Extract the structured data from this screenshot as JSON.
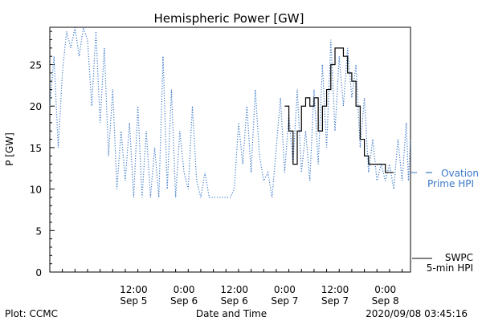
{
  "chart_data": {
    "type": "line",
    "title": "Hemispheric Power [GW]",
    "xlabel": "Date and Time",
    "ylabel": "P [GW]",
    "ylim": [
      0,
      29.5
    ],
    "xlim": [
      "2020-09-04 16:00",
      "2020-09-08 06:00"
    ],
    "y_ticks": [
      0,
      5,
      10,
      15,
      20,
      25
    ],
    "x_ticks": [
      {
        "x": "2020-09-05 12:00",
        "time": "12:00",
        "date": "Sep 5"
      },
      {
        "x": "2020-09-06 00:00",
        "time": "0:00",
        "date": "Sep 6"
      },
      {
        "x": "2020-09-06 12:00",
        "time": "12:00",
        "date": "Sep 6"
      },
      {
        "x": "2020-09-07 00:00",
        "time": "0:00",
        "date": "Sep 7"
      },
      {
        "x": "2020-09-07 12:00",
        "time": "12:00",
        "date": "Sep 7"
      },
      {
        "x": "2020-09-08 00:00",
        "time": "0:00",
        "date": "Sep 8"
      }
    ],
    "legend_placement": "right",
    "grid": false,
    "series": [
      {
        "name": "Ovation Prime HPI",
        "label_line1": "Ovation",
        "label_line2": "Prime HPI",
        "color": "#3a78c8",
        "style": "dotted",
        "points": [
          [
            "2020-09-04 16:00",
            20
          ],
          [
            "2020-09-04 17:00",
            26
          ],
          [
            "2020-09-04 18:00",
            15
          ],
          [
            "2020-09-04 19:00",
            24
          ],
          [
            "2020-09-04 20:00",
            29
          ],
          [
            "2020-09-04 21:00",
            27
          ],
          [
            "2020-09-04 22:00",
            30
          ],
          [
            "2020-09-04 23:00",
            26
          ],
          [
            "2020-09-05 00:00",
            30
          ],
          [
            "2020-09-05 01:00",
            28
          ],
          [
            "2020-09-05 02:00",
            20
          ],
          [
            "2020-09-05 03:00",
            29
          ],
          [
            "2020-09-05 04:00",
            18
          ],
          [
            "2020-09-05 05:00",
            27
          ],
          [
            "2020-09-05 06:00",
            14
          ],
          [
            "2020-09-05 07:00",
            22
          ],
          [
            "2020-09-05 08:00",
            10
          ],
          [
            "2020-09-05 09:00",
            17
          ],
          [
            "2020-09-05 10:00",
            11
          ],
          [
            "2020-09-05 11:00",
            18
          ],
          [
            "2020-09-05 12:00",
            9
          ],
          [
            "2020-09-05 13:00",
            20
          ],
          [
            "2020-09-05 14:00",
            9
          ],
          [
            "2020-09-05 15:00",
            17
          ],
          [
            "2020-09-05 16:00",
            9
          ],
          [
            "2020-09-05 17:00",
            15
          ],
          [
            "2020-09-05 18:00",
            9
          ],
          [
            "2020-09-05 19:00",
            26
          ],
          [
            "2020-09-05 20:00",
            10
          ],
          [
            "2020-09-05 21:00",
            22
          ],
          [
            "2020-09-05 22:00",
            9
          ],
          [
            "2020-09-05 23:00",
            17
          ],
          [
            "2020-09-06 00:00",
            12
          ],
          [
            "2020-09-06 01:00",
            10
          ],
          [
            "2020-09-06 02:00",
            20
          ],
          [
            "2020-09-06 03:00",
            11
          ],
          [
            "2020-09-06 04:00",
            9
          ],
          [
            "2020-09-06 05:00",
            12
          ],
          [
            "2020-09-06 06:00",
            9
          ],
          [
            "2020-09-06 07:00",
            9
          ],
          [
            "2020-09-06 08:00",
            9
          ],
          [
            "2020-09-06 09:00",
            9
          ],
          [
            "2020-09-06 10:00",
            9
          ],
          [
            "2020-09-06 11:00",
            9
          ],
          [
            "2020-09-06 12:00",
            10
          ],
          [
            "2020-09-06 13:00",
            18
          ],
          [
            "2020-09-06 14:00",
            13
          ],
          [
            "2020-09-06 15:00",
            20
          ],
          [
            "2020-09-06 16:00",
            12
          ],
          [
            "2020-09-06 17:00",
            22
          ],
          [
            "2020-09-06 18:00",
            14
          ],
          [
            "2020-09-06 19:00",
            11
          ],
          [
            "2020-09-06 20:00",
            12
          ],
          [
            "2020-09-06 21:00",
            9
          ],
          [
            "2020-09-06 22:00",
            15
          ],
          [
            "2020-09-06 23:00",
            21
          ],
          [
            "2020-09-07 00:00",
            12
          ],
          [
            "2020-09-07 01:00",
            19
          ],
          [
            "2020-09-07 02:00",
            13
          ],
          [
            "2020-09-07 03:00",
            22
          ],
          [
            "2020-09-07 04:00",
            12
          ],
          [
            "2020-09-07 05:00",
            17
          ],
          [
            "2020-09-07 06:00",
            11
          ],
          [
            "2020-09-07 07:00",
            22
          ],
          [
            "2020-09-07 08:00",
            13
          ],
          [
            "2020-09-07 09:00",
            25
          ],
          [
            "2020-09-07 10:00",
            15
          ],
          [
            "2020-09-07 11:00",
            28
          ],
          [
            "2020-09-07 12:00",
            17
          ],
          [
            "2020-09-07 13:00",
            26
          ],
          [
            "2020-09-07 14:00",
            20
          ],
          [
            "2020-09-07 15:00",
            27
          ],
          [
            "2020-09-07 16:00",
            21
          ],
          [
            "2020-09-07 17:00",
            25
          ],
          [
            "2020-09-07 18:00",
            15
          ],
          [
            "2020-09-07 19:00",
            21
          ],
          [
            "2020-09-07 20:00",
            12
          ],
          [
            "2020-09-07 21:00",
            16
          ],
          [
            "2020-09-07 22:00",
            11
          ],
          [
            "2020-09-07 23:00",
            13
          ],
          [
            "2020-09-08 00:00",
            11
          ],
          [
            "2020-09-08 01:00",
            13
          ],
          [
            "2020-09-08 02:00",
            10
          ],
          [
            "2020-09-08 03:00",
            16
          ],
          [
            "2020-09-08 04:00",
            11
          ],
          [
            "2020-09-08 05:00",
            18
          ],
          [
            "2020-09-08 05:30",
            11
          ],
          [
            "2020-09-08 06:00",
            16
          ]
        ]
      },
      {
        "name": "SWPC 5-min HPI",
        "label_line1": "SWPC",
        "label_line2": "5-min HPI",
        "color": "#000000",
        "style": "solid",
        "points": [
          [
            "2020-09-07 00:00",
            20
          ],
          [
            "2020-09-07 01:00",
            17
          ],
          [
            "2020-09-07 02:00",
            13
          ],
          [
            "2020-09-07 03:00",
            17
          ],
          [
            "2020-09-07 04:00",
            20
          ],
          [
            "2020-09-07 05:00",
            21
          ],
          [
            "2020-09-07 06:00",
            20
          ],
          [
            "2020-09-07 07:00",
            21
          ],
          [
            "2020-09-07 08:00",
            17
          ],
          [
            "2020-09-07 09:00",
            20
          ],
          [
            "2020-09-07 10:00",
            22
          ],
          [
            "2020-09-07 11:00",
            25
          ],
          [
            "2020-09-07 12:00",
            27
          ],
          [
            "2020-09-07 13:00",
            27
          ],
          [
            "2020-09-07 14:00",
            26
          ],
          [
            "2020-09-07 15:00",
            24
          ],
          [
            "2020-09-07 16:00",
            23
          ],
          [
            "2020-09-07 17:00",
            20
          ],
          [
            "2020-09-07 18:00",
            16
          ],
          [
            "2020-09-07 19:00",
            14
          ],
          [
            "2020-09-07 20:00",
            13
          ],
          [
            "2020-09-07 21:00",
            13
          ],
          [
            "2020-09-07 22:00",
            13
          ],
          [
            "2020-09-07 23:00",
            13
          ],
          [
            "2020-09-08 00:00",
            12
          ],
          [
            "2020-09-08 01:00",
            12
          ],
          [
            "2020-09-08 02:00",
            12
          ]
        ]
      }
    ]
  },
  "footer": {
    "left": "Plot: CCMC",
    "right": "2020/09/08 03:45:16"
  }
}
